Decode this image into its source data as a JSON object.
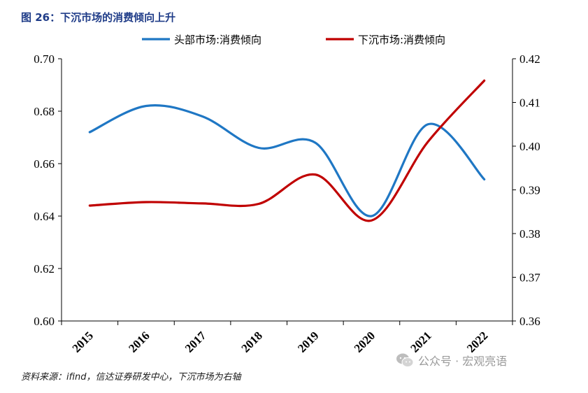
{
  "title": "图 26：下沉市场的消费倾向上升",
  "source": "资料来源：ifind，信达证券研发中心，下沉市场为右轴",
  "watermark": "公众号 · 宏观亮语",
  "chart_data": {
    "type": "line",
    "x": [
      "2015",
      "2016",
      "2017",
      "2018",
      "2019",
      "2020",
      "2021",
      "2022"
    ],
    "series": [
      {
        "name": "头部市场:消费倾向",
        "axis": "left",
        "color": "#1f77c4",
        "values": [
          0.672,
          0.682,
          0.678,
          0.666,
          0.668,
          0.64,
          0.675,
          0.654
        ]
      },
      {
        "name": "下沉市场:消费倾向",
        "axis": "right",
        "color": "#c00000",
        "values": [
          0.3864,
          0.3872,
          0.3869,
          0.3868,
          0.3935,
          0.383,
          0.401,
          0.415
        ]
      }
    ],
    "y_left": {
      "min": 0.6,
      "max": 0.7,
      "ticks": [
        "0.60",
        "0.62",
        "0.64",
        "0.66",
        "0.68",
        "0.70"
      ]
    },
    "y_right": {
      "min": 0.36,
      "max": 0.42,
      "ticks": [
        "0.36",
        "0.37",
        "0.38",
        "0.39",
        "0.40",
        "0.41",
        "0.42"
      ]
    },
    "grid": false,
    "legend": "top"
  }
}
